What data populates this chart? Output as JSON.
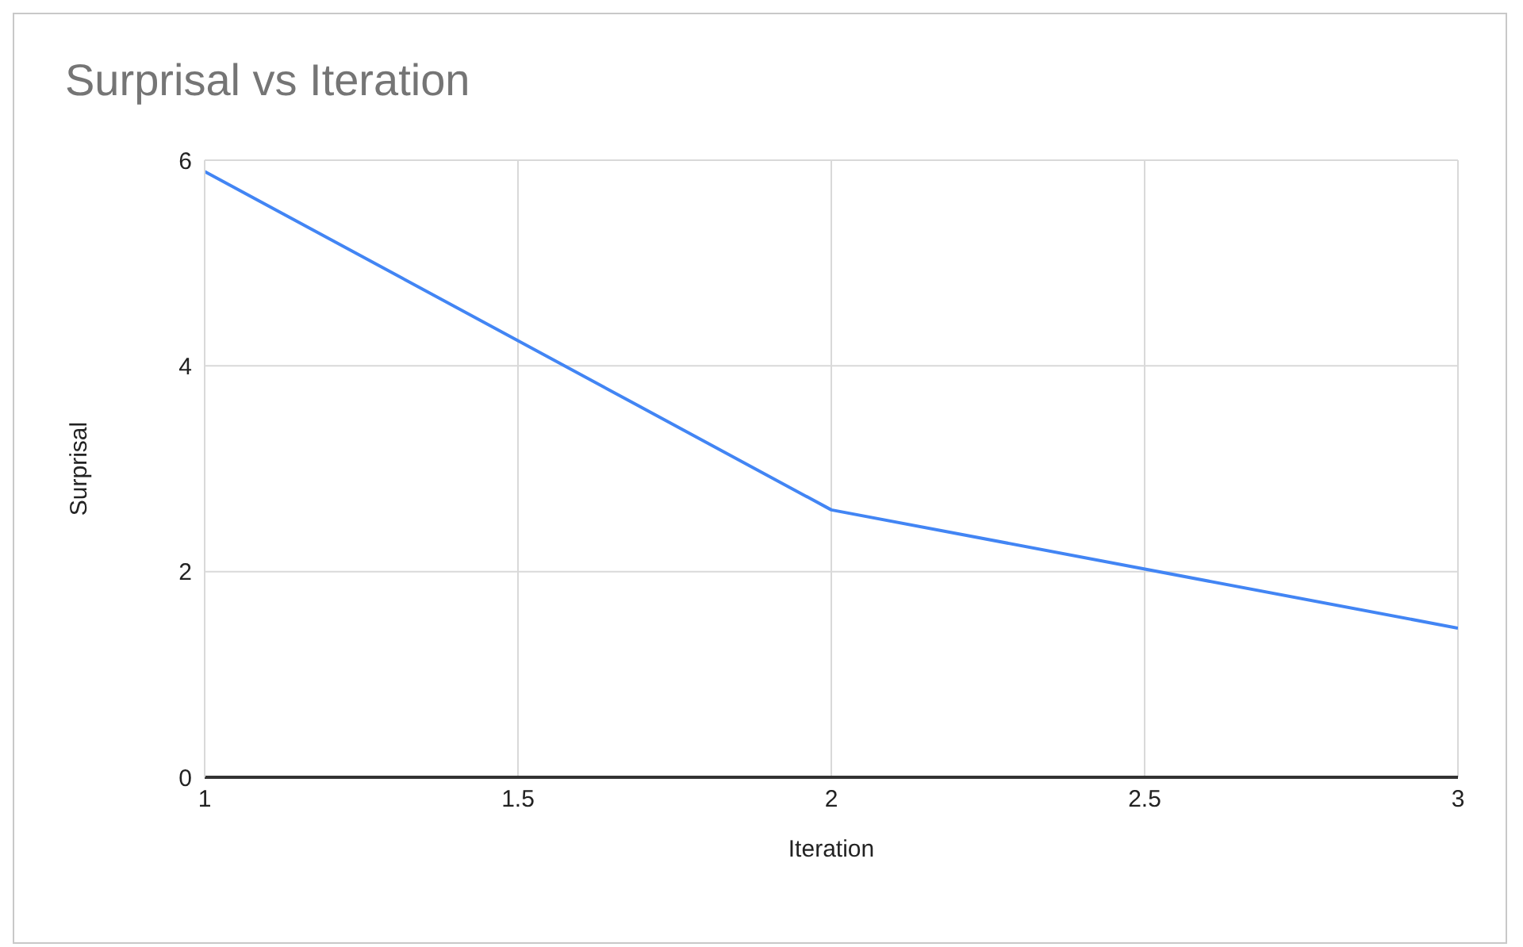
{
  "chart_data": {
    "type": "line",
    "title": "Surprisal vs Iteration",
    "xlabel": "Iteration",
    "ylabel": "Surprisal",
    "x": [
      1,
      2,
      3
    ],
    "series": [
      {
        "color": "#4285f4",
        "values": [
          5.89,
          2.6,
          1.45
        ]
      }
    ],
    "xlim": [
      1,
      3
    ],
    "xticks": [
      1,
      1.5,
      2,
      2.5,
      3
    ],
    "ylim": [
      0,
      6
    ],
    "yticks": [
      0,
      2,
      4,
      6
    ],
    "grid": true,
    "legend": false,
    "marker": "none",
    "line_style": "solid"
  }
}
